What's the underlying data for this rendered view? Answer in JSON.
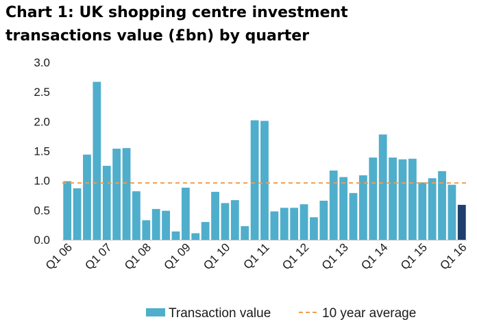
{
  "chart_title_line1": "Chart 1: UK shopping centre investment",
  "chart_title_line2": "transactions value (£bn) by quarter",
  "colors": {
    "bar": "#4FAECB",
    "bar_highlight": "#1F3F6E",
    "average": "#F29D4B"
  },
  "chart_data": {
    "type": "bar",
    "title": "Chart 1: UK shopping centre investment transactions value (£bn) by quarter",
    "xlabel": "",
    "ylabel": "",
    "ylim": [
      0,
      3.0
    ],
    "yticks": [
      "0.0",
      "0.5",
      "1.0",
      "1.5",
      "2.0",
      "2.5",
      "3.0"
    ],
    "xtick_labels": [
      "Q1 06",
      "Q1 07",
      "Q1 08",
      "Q1 09",
      "Q1 10",
      "Q1 11",
      "Q1 12",
      "Q1 13",
      "Q1 14",
      "Q1 15",
      "Q1 16"
    ],
    "categories": [
      "Q1 06",
      "Q2 06",
      "Q3 06",
      "Q4 06",
      "Q1 07",
      "Q2 07",
      "Q3 07",
      "Q4 07",
      "Q1 08",
      "Q2 08",
      "Q3 08",
      "Q4 08",
      "Q1 09",
      "Q2 09",
      "Q3 09",
      "Q4 09",
      "Q1 10",
      "Q2 10",
      "Q3 10",
      "Q4 10",
      "Q1 11",
      "Q2 11",
      "Q3 11",
      "Q4 11",
      "Q1 12",
      "Q2 12",
      "Q3 12",
      "Q4 12",
      "Q1 13",
      "Q2 13",
      "Q3 13",
      "Q4 13",
      "Q1 14",
      "Q2 14",
      "Q3 14",
      "Q4 14",
      "Q1 15",
      "Q2 15",
      "Q3 15",
      "Q4 15",
      "Q1 16"
    ],
    "series": [
      {
        "name": "Transaction value",
        "values": [
          0.99,
          0.87,
          1.44,
          2.67,
          1.25,
          1.54,
          1.55,
          0.82,
          0.33,
          0.52,
          0.49,
          0.14,
          0.88,
          0.11,
          0.3,
          0.81,
          0.62,
          0.67,
          0.23,
          2.02,
          2.01,
          0.48,
          0.54,
          0.54,
          0.6,
          0.38,
          0.66,
          1.17,
          1.06,
          0.79,
          1.09,
          1.39,
          1.78,
          1.39,
          1.36,
          1.37,
          0.97,
          1.04,
          1.16,
          0.93,
          0.59
        ],
        "highlight_last": true
      }
    ],
    "average": {
      "name": "10 year average",
      "value": 0.96
    },
    "legend": [
      "Transaction value",
      "10 year average"
    ],
    "legend_position": "bottom",
    "grid": false
  }
}
